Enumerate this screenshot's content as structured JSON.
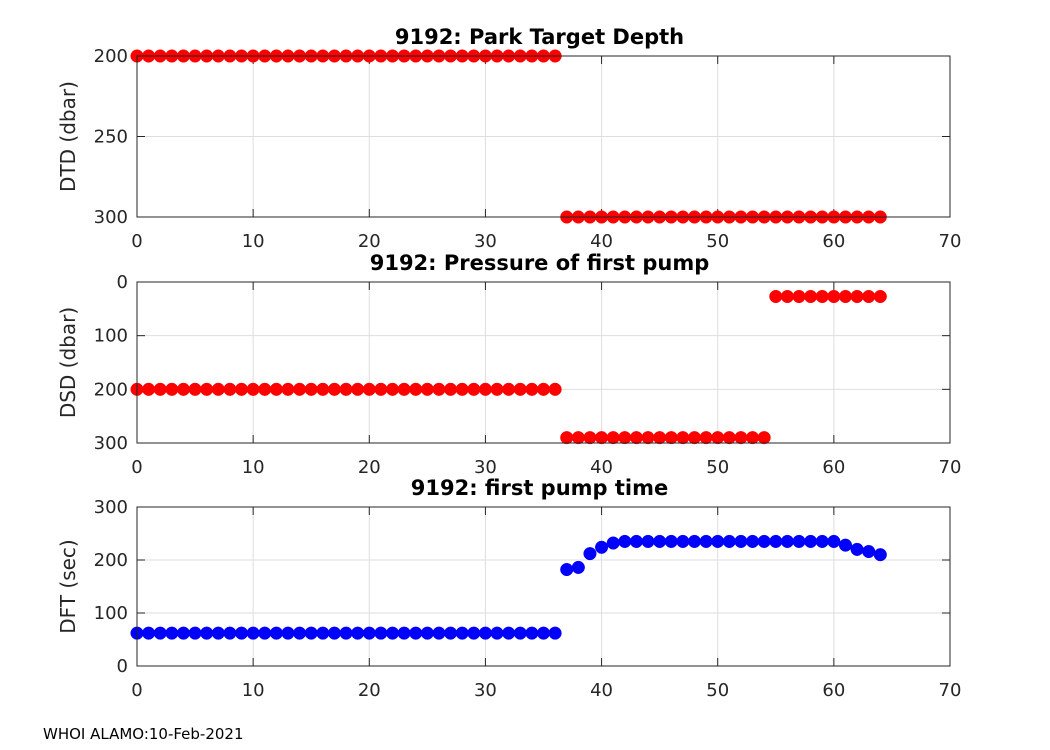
{
  "footer_text": "WHOI ALAMO:10-Feb-2021",
  "colors": {
    "red": "#ff0000",
    "blue": "#0000ff",
    "grid": "#dedede",
    "axis": "#262626"
  },
  "chart_data": [
    {
      "type": "scatter",
      "title": "9192: Park Target Depth",
      "xlabel": "",
      "ylabel": "DTD (dbar)",
      "xlim": [
        0,
        70
      ],
      "ylim": [
        200,
        300
      ],
      "y_reversed": true,
      "xticks": [
        0,
        10,
        20,
        30,
        40,
        50,
        60,
        70
      ],
      "yticks": [
        200,
        250,
        300
      ],
      "grid": true,
      "color": "red",
      "series": [
        {
          "name": "DTD",
          "x": [
            0,
            1,
            2,
            3,
            4,
            5,
            6,
            7,
            8,
            9,
            10,
            11,
            12,
            13,
            14,
            15,
            16,
            17,
            18,
            19,
            20,
            21,
            22,
            23,
            24,
            25,
            26,
            27,
            28,
            29,
            30,
            31,
            32,
            33,
            34,
            35,
            36,
            37,
            38,
            39,
            40,
            41,
            42,
            43,
            44,
            45,
            46,
            47,
            48,
            49,
            50,
            51,
            52,
            53,
            54,
            55,
            56,
            57,
            58,
            59,
            60,
            61,
            62,
            63,
            64
          ],
          "y": [
            200,
            200,
            200,
            200,
            200,
            200,
            200,
            200,
            200,
            200,
            200,
            200,
            200,
            200,
            200,
            200,
            200,
            200,
            200,
            200,
            200,
            200,
            200,
            200,
            200,
            200,
            200,
            200,
            200,
            200,
            200,
            200,
            200,
            200,
            200,
            200,
            200,
            300,
            300,
            300,
            300,
            300,
            300,
            300,
            300,
            300,
            300,
            300,
            300,
            300,
            300,
            300,
            300,
            300,
            300,
            300,
            300,
            300,
            300,
            300,
            300,
            300,
            300,
            300,
            300
          ]
        }
      ]
    },
    {
      "type": "scatter",
      "title": "9192: Pressure of first pump",
      "xlabel": "",
      "ylabel": "DSD (dbar)",
      "xlim": [
        0,
        70
      ],
      "ylim": [
        0,
        300
      ],
      "y_reversed": true,
      "xticks": [
        0,
        10,
        20,
        30,
        40,
        50,
        60,
        70
      ],
      "yticks": [
        0,
        100,
        200,
        300
      ],
      "grid": true,
      "color": "red",
      "series": [
        {
          "name": "DSD",
          "x": [
            0,
            1,
            2,
            3,
            4,
            5,
            6,
            7,
            8,
            9,
            10,
            11,
            12,
            13,
            14,
            15,
            16,
            17,
            18,
            19,
            20,
            21,
            22,
            23,
            24,
            25,
            26,
            27,
            28,
            29,
            30,
            31,
            32,
            33,
            34,
            35,
            36,
            37,
            38,
            39,
            40,
            41,
            42,
            43,
            44,
            45,
            46,
            47,
            48,
            49,
            50,
            51,
            52,
            53,
            54,
            55,
            56,
            57,
            58,
            59,
            60,
            61,
            62,
            63,
            64
          ],
          "y": [
            200,
            200,
            200,
            200,
            200,
            200,
            200,
            200,
            200,
            200,
            200,
            200,
            200,
            200,
            200,
            200,
            200,
            200,
            200,
            200,
            200,
            200,
            200,
            200,
            200,
            200,
            200,
            200,
            200,
            200,
            200,
            200,
            200,
            200,
            200,
            200,
            200,
            290,
            290,
            290,
            290,
            290,
            290,
            290,
            290,
            290,
            290,
            290,
            290,
            290,
            290,
            290,
            290,
            290,
            290,
            27,
            27,
            27,
            27,
            27,
            27,
            27,
            27,
            27,
            27
          ]
        }
      ]
    },
    {
      "type": "scatter",
      "title": "9192: first pump time",
      "xlabel": "",
      "ylabel": "DFT (sec)",
      "xlim": [
        0,
        70
      ],
      "ylim": [
        0,
        300
      ],
      "y_reversed": false,
      "xticks": [
        0,
        10,
        20,
        30,
        40,
        50,
        60,
        70
      ],
      "yticks": [
        0,
        100,
        200,
        300
      ],
      "grid": true,
      "color": "blue",
      "series": [
        {
          "name": "DFT",
          "x": [
            0,
            1,
            2,
            3,
            4,
            5,
            6,
            7,
            8,
            9,
            10,
            11,
            12,
            13,
            14,
            15,
            16,
            17,
            18,
            19,
            20,
            21,
            22,
            23,
            24,
            25,
            26,
            27,
            28,
            29,
            30,
            31,
            32,
            33,
            34,
            35,
            36,
            37,
            38,
            39,
            40,
            41,
            42,
            43,
            44,
            45,
            46,
            47,
            48,
            49,
            50,
            51,
            52,
            53,
            54,
            55,
            56,
            57,
            58,
            59,
            60,
            61,
            62,
            63,
            64
          ],
          "y": [
            62,
            62,
            62,
            62,
            62,
            62,
            62,
            62,
            62,
            62,
            62,
            62,
            62,
            62,
            62,
            62,
            62,
            62,
            62,
            62,
            62,
            62,
            62,
            62,
            62,
            62,
            62,
            62,
            62,
            62,
            62,
            62,
            62,
            62,
            62,
            62,
            62,
            182,
            186,
            212,
            224,
            232,
            235,
            235,
            235,
            235,
            235,
            235,
            235,
            235,
            235,
            235,
            235,
            235,
            235,
            235,
            235,
            235,
            235,
            235,
            235,
            228,
            220,
            216,
            210
          ]
        }
      ]
    }
  ]
}
